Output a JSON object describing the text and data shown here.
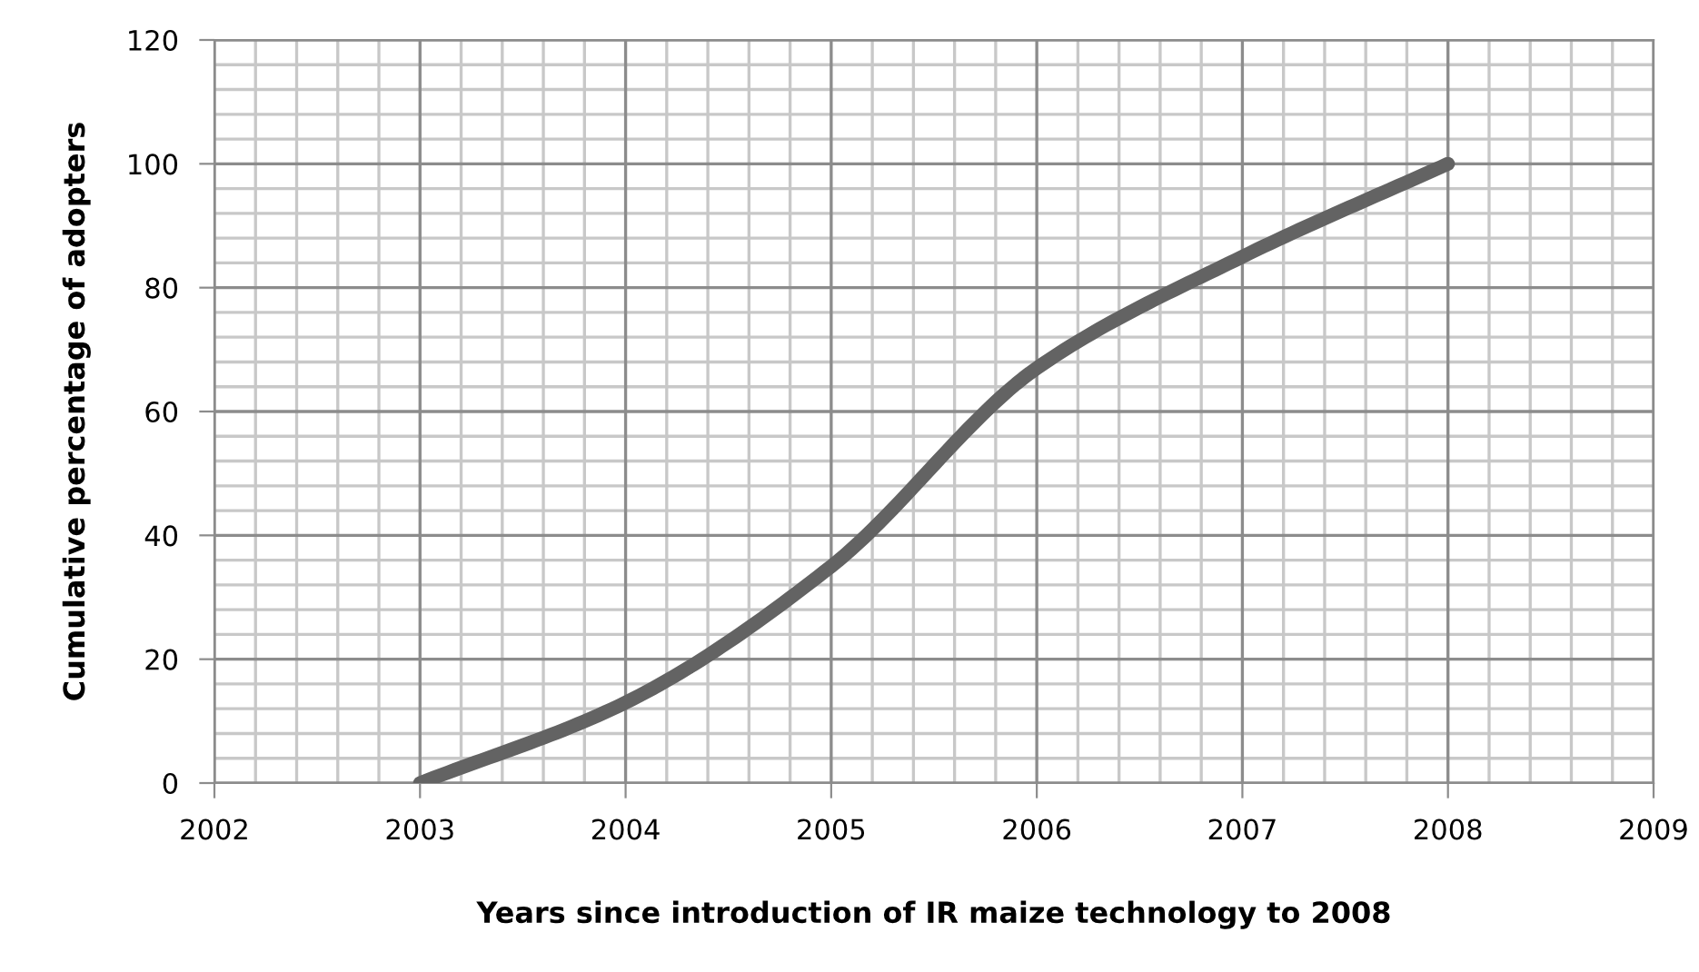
{
  "chart_data": {
    "type": "line",
    "xlabel": "Years since introduction of IR maize technology to 2008",
    "ylabel": "Cumulative percentage of adopters",
    "x": [
      2003,
      2004,
      2005,
      2006,
      2007,
      2008
    ],
    "series": [
      {
        "color": "#636363",
        "values": [
          0,
          13,
          35,
          67,
          85,
          100
        ]
      }
    ],
    "xlim": [
      2002,
      2009
    ],
    "xticks": [
      2002,
      2003,
      2004,
      2005,
      2006,
      2007,
      2008,
      2009
    ],
    "ylim": [
      0,
      120
    ],
    "yticks": [
      0,
      20,
      40,
      60,
      80,
      100,
      120
    ],
    "grid": true,
    "legend": false,
    "marker": "none",
    "line_style": "solid"
  }
}
